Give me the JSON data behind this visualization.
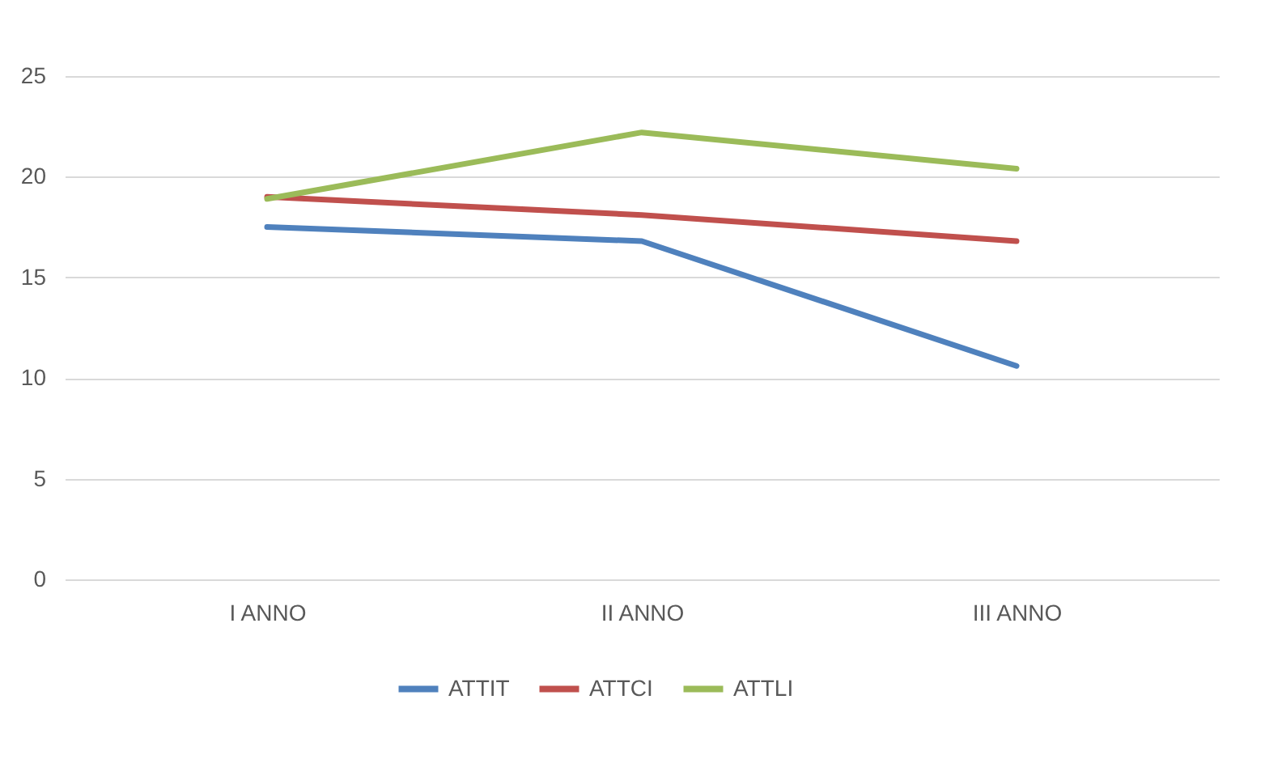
{
  "chart_data": {
    "type": "line",
    "categories": [
      "I ANNO",
      "II ANNO",
      "III ANNO"
    ],
    "series": [
      {
        "name": "ATTIT",
        "color": "#4f81bd",
        "values": [
          17.5,
          16.8,
          10.6
        ]
      },
      {
        "name": "ATTCI",
        "color": "#c0504d",
        "values": [
          19.0,
          18.1,
          16.8
        ]
      },
      {
        "name": "ATTLI",
        "color": "#9bbb59",
        "values": [
          18.9,
          22.2,
          20.4
        ]
      }
    ],
    "ylim": [
      0,
      25
    ],
    "yticks": [
      0,
      5,
      10,
      15,
      20,
      25
    ],
    "grid": "y",
    "legend": "bottom",
    "marker": "none",
    "line_style": "solid"
  }
}
